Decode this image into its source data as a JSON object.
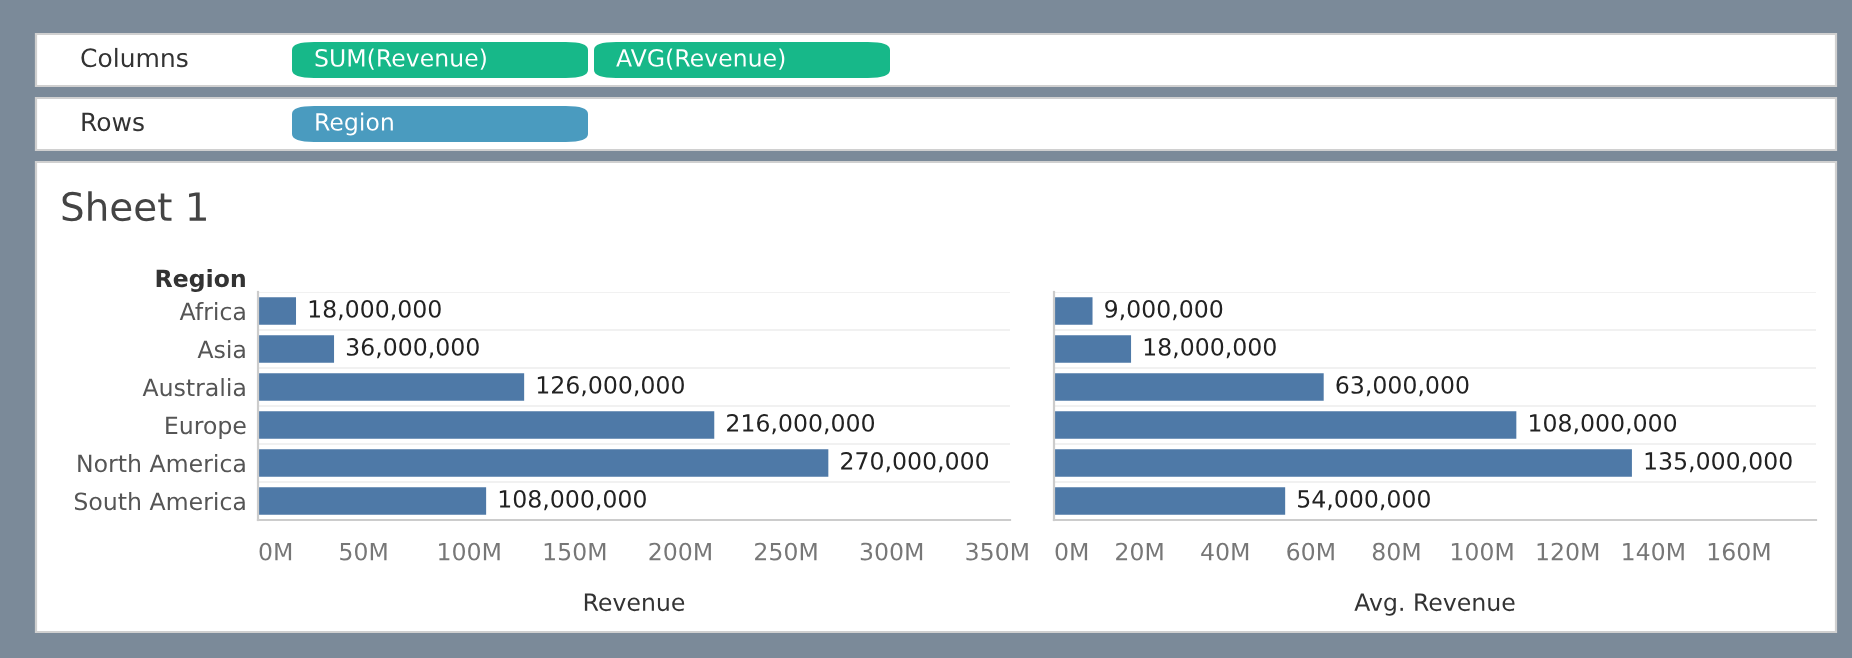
{
  "chart_data": [
    {
      "type": "other",
      "annotations": [
        "Columns",
        "SUM(Revenue)",
        "AVG(Revenue)",
        "Rows",
        "Region"
      ],
      "colors": [
        "#17b889",
        "#17b889",
        "#4a9bbf"
      ]
    },
    {
      "type": "bar",
      "orientation": "horizontal",
      "title": "Sheet 1",
      "ylabel": "Region",
      "xlabel": "Revenue",
      "categories": [
        "Africa",
        "Asia",
        "Australia",
        "Europe",
        "North America",
        "South America"
      ],
      "series": [
        {
          "color": "#4e79a7",
          "values": [
            18000000,
            36000000,
            126000000,
            216000000,
            270000000,
            108000000
          ],
          "value_labels": [
            "18,000,000",
            "36,000,000",
            "126,000,000",
            "216,000,000",
            "270,000,000",
            "108,000,000"
          ]
        }
      ],
      "xlim": [
        0,
        356000000
      ],
      "xticks": [
        {
          "value": 0,
          "label": "0M"
        },
        {
          "value": 50000000,
          "label": "50M"
        },
        {
          "value": 100000000,
          "label": "100M"
        },
        {
          "value": 150000000,
          "label": "150M"
        },
        {
          "value": 200000000,
          "label": "200M"
        },
        {
          "value": 250000000,
          "label": "250M"
        },
        {
          "value": 300000000,
          "label": "300M"
        },
        {
          "value": 350000000,
          "label": "350M"
        }
      ]
    },
    {
      "type": "bar",
      "orientation": "horizontal",
      "xlabel": "Avg. Revenue",
      "tick_labels": "x",
      "series": [
        {
          "color": "#4e79a7",
          "values": [
            9000000,
            18000000,
            63000000,
            108000000,
            135000000,
            54000000
          ],
          "value_labels": [
            "9,000,000",
            "18,000,000",
            "63,000,000",
            "108,000,000",
            "135,000,000",
            "54,000,000"
          ]
        }
      ],
      "xlim": [
        0,
        178000000
      ],
      "xticks": [
        {
          "value": 0,
          "label": "0M"
        },
        {
          "value": 20000000,
          "label": "20M"
        },
        {
          "value": 40000000,
          "label": "40M"
        },
        {
          "value": 60000000,
          "label": "60M"
        },
        {
          "value": 80000000,
          "label": "80M"
        },
        {
          "value": 100000000,
          "label": "100M"
        },
        {
          "value": 120000000,
          "label": "120M"
        },
        {
          "value": 140000000,
          "label": "140M"
        },
        {
          "value": 160000000,
          "label": "160M"
        }
      ]
    }
  ]
}
